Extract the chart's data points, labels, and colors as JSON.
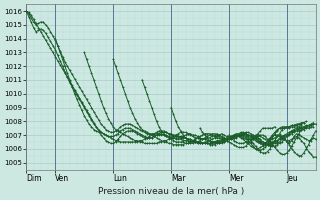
{
  "title": "",
  "xlabel": "Pression niveau de la mer( hPa )",
  "ylabel": "",
  "background_color": "#cce8e0",
  "plot_bg_color": "#cce8e0",
  "grid_major_color": "#aacccc",
  "grid_minor_color": "#bbdddd",
  "line_color": "#1a5c2a",
  "ylim": [
    1004.5,
    1016.5
  ],
  "ytick_min": 1005,
  "ytick_max": 1016,
  "ytick_step": 1,
  "day_labels": [
    "Dim",
    "Ven",
    "Lun",
    "Mar",
    "Mer",
    "Jeu"
  ],
  "day_positions_hours": [
    0,
    24,
    72,
    120,
    168,
    216
  ],
  "total_hours": 240,
  "lines": [
    {
      "start_hour": 0,
      "values": [
        1016.0,
        1015.9,
        1015.7,
        1015.4,
        1015.1,
        1014.8,
        1014.5,
        1014.2,
        1013.9,
        1013.6,
        1013.3,
        1013.0,
        1012.7,
        1012.4,
        1012.1,
        1011.8,
        1011.5,
        1011.2,
        1010.9,
        1010.6,
        1010.3,
        1010.0,
        1009.7,
        1009.4,
        1009.1,
        1008.8,
        1008.5,
        1008.2,
        1007.9,
        1007.6,
        1007.3,
        1007.0,
        1006.8,
        1006.6,
        1006.5,
        1006.4,
        1006.4,
        1006.5,
        1006.7,
        1006.9,
        1007.1,
        1007.2,
        1007.3,
        1007.3,
        1007.3,
        1007.2,
        1007.1,
        1007.0,
        1006.9,
        1006.8,
        1006.8,
        1006.8,
        1006.8,
        1006.9,
        1007.0,
        1007.1,
        1007.2,
        1007.2,
        1007.2,
        1007.1,
        1007.1,
        1007.0,
        1007.0,
        1006.9,
        1006.9,
        1006.8,
        1006.8,
        1006.7,
        1006.7,
        1006.6,
        1006.6,
        1006.5,
        1006.5,
        1006.4,
        1006.4,
        1006.4,
        1006.3,
        1006.3,
        1006.3,
        1006.4,
        1006.4,
        1006.5,
        1006.5,
        1006.6,
        1006.7,
        1006.7,
        1006.8,
        1006.9,
        1007.0,
        1007.0,
        1007.1,
        1007.1,
        1007.0,
        1007.0,
        1006.9,
        1006.8,
        1006.7,
        1006.6,
        1006.5,
        1006.4,
        1006.3,
        1006.3,
        1006.3,
        1006.4,
        1006.4,
        1006.5,
        1006.7,
        1006.8,
        1006.9,
        1007.0,
        1007.1,
        1007.2,
        1007.3,
        1007.3,
        1007.4,
        1007.4,
        1007.5,
        1007.5,
        1007.6,
        1007.6
      ]
    },
    {
      "start_hour": 0,
      "values": [
        1016.0,
        1015.8,
        1015.5,
        1015.2,
        1015.0,
        1015.1,
        1015.2,
        1015.2,
        1015.0,
        1014.8,
        1014.5,
        1014.2,
        1013.9,
        1013.5,
        1013.1,
        1012.7,
        1012.3,
        1012.0,
        1011.7,
        1011.4,
        1011.1,
        1010.8,
        1010.5,
        1010.2,
        1009.9,
        1009.6,
        1009.3,
        1009.0,
        1008.7,
        1008.4,
        1008.1,
        1007.8,
        1007.6,
        1007.4,
        1007.3,
        1007.2,
        1007.2,
        1007.3,
        1007.4,
        1007.6,
        1007.7,
        1007.8,
        1007.8,
        1007.8,
        1007.7,
        1007.6,
        1007.5,
        1007.4,
        1007.3,
        1007.2,
        1007.1,
        1007.1,
        1007.1,
        1007.1,
        1007.2,
        1007.3,
        1007.3,
        1007.3,
        1007.2,
        1007.1,
        1007.0,
        1006.9,
        1006.9,
        1006.9,
        1006.8,
        1006.8,
        1006.8,
        1006.7,
        1006.7,
        1006.6,
        1006.6,
        1006.5,
        1006.5,
        1006.4,
        1006.4,
        1006.4,
        1006.4,
        1006.4,
        1006.4,
        1006.5,
        1006.5,
        1006.6,
        1006.6,
        1006.7,
        1006.8,
        1006.8,
        1006.9,
        1007.0,
        1007.0,
        1007.1,
        1007.1,
        1007.0,
        1006.9,
        1006.8,
        1006.7,
        1006.6,
        1006.5,
        1006.4,
        1006.3,
        1006.3,
        1006.3,
        1006.3,
        1006.4,
        1006.5,
        1006.5,
        1006.7,
        1006.8,
        1006.9,
        1007.0,
        1007.1,
        1007.2,
        1007.3,
        1007.4,
        1007.4,
        1007.5,
        1007.5,
        1007.6,
        1007.6,
        1007.7,
        1007.8
      ]
    },
    {
      "start_hour": 0,
      "values": [
        1016.0,
        1015.6,
        1015.2,
        1014.8,
        1014.5,
        1014.6,
        1014.7,
        1014.6,
        1014.4,
        1014.1,
        1013.8,
        1013.5,
        1013.2,
        1012.8,
        1012.4,
        1012.0,
        1011.6,
        1011.2,
        1010.8,
        1010.5,
        1010.2,
        1009.9,
        1009.6,
        1009.3,
        1009.0,
        1008.7,
        1008.4,
        1008.1,
        1007.8,
        1007.6,
        1007.4,
        1007.2,
        1007.1,
        1007.0,
        1006.9,
        1006.9,
        1006.9,
        1007.0,
        1007.1,
        1007.3,
        1007.4,
        1007.5,
        1007.5,
        1007.5,
        1007.4,
        1007.3,
        1007.2,
        1007.1,
        1007.0,
        1006.9,
        1006.8,
        1006.8,
        1006.8,
        1006.9,
        1007.0,
        1007.0,
        1007.1,
        1007.0,
        1007.0,
        1006.9,
        1006.8,
        1006.8,
        1006.7,
        1006.7,
        1006.7,
        1006.6,
        1006.6,
        1006.6,
        1006.5,
        1006.5,
        1006.5,
        1006.4,
        1006.4,
        1006.4,
        1006.4,
        1006.4,
        1006.4,
        1006.5,
        1006.5,
        1006.6,
        1006.6,
        1006.7,
        1006.7,
        1006.8,
        1006.9,
        1006.9,
        1007.0,
        1007.1,
        1007.1,
        1007.2,
        1007.2,
        1007.1,
        1007.0,
        1006.9,
        1006.8,
        1006.7,
        1006.6,
        1006.5,
        1006.4,
        1006.4,
        1006.4,
        1006.4,
        1006.5,
        1006.6,
        1006.6,
        1006.8,
        1006.9,
        1007.0,
        1007.1,
        1007.2,
        1007.3,
        1007.4,
        1007.5,
        1007.5,
        1007.6,
        1007.6,
        1007.7,
        1007.7,
        1007.8,
        1007.9
      ]
    },
    {
      "start_hour": 24,
      "values": [
        1014.0,
        1013.5,
        1013.0,
        1012.5,
        1012.0,
        1011.5,
        1011.0,
        1010.5,
        1010.0,
        1009.6,
        1009.2,
        1008.8,
        1008.4,
        1008.1,
        1007.8,
        1007.6,
        1007.4,
        1007.3,
        1007.2,
        1007.2,
        1007.1,
        1007.0,
        1006.9,
        1006.8,
        1006.7,
        1006.6,
        1006.6,
        1006.5,
        1006.5,
        1006.5,
        1006.5,
        1006.5,
        1006.5,
        1006.5,
        1006.5,
        1006.6,
        1006.6,
        1006.7,
        1006.8,
        1006.9,
        1007.0,
        1007.1,
        1007.1,
        1007.1,
        1007.0,
        1007.0,
        1006.9,
        1006.9,
        1006.8,
        1006.8,
        1006.8,
        1006.8,
        1006.8,
        1006.9,
        1007.0,
        1007.1,
        1007.1,
        1007.0,
        1007.0,
        1006.9,
        1006.8,
        1006.7,
        1006.7,
        1006.6,
        1006.6,
        1006.5,
        1006.5,
        1006.5,
        1006.5,
        1006.6,
        1006.6,
        1006.7,
        1006.7,
        1006.8,
        1006.9,
        1006.9,
        1007.0,
        1007.1,
        1007.1,
        1007.2,
        1007.2,
        1007.1,
        1007.0,
        1006.9,
        1006.8,
        1006.7,
        1006.5,
        1006.4,
        1006.3,
        1006.2,
        1006.2,
        1006.2,
        1006.3,
        1006.4,
        1006.5,
        1006.7,
        1006.9,
        1007.1,
        1007.3,
        1007.4
      ]
    },
    {
      "start_hour": 48,
      "values": [
        1013.0,
        1012.5,
        1012.0,
        1011.5,
        1011.0,
        1010.5,
        1010.0,
        1009.5,
        1009.0,
        1008.6,
        1008.2,
        1007.9,
        1007.6,
        1007.4,
        1007.3,
        1007.2,
        1007.1,
        1007.0,
        1006.9,
        1006.8,
        1006.7,
        1006.6,
        1006.6,
        1006.5,
        1006.5,
        1006.4,
        1006.4,
        1006.4,
        1006.4,
        1006.4,
        1006.4,
        1006.5,
        1006.5,
        1006.6,
        1006.6,
        1006.7,
        1006.8,
        1006.9,
        1007.0,
        1007.1,
        1007.2,
        1007.2,
        1007.2,
        1007.1,
        1007.0,
        1006.9,
        1006.8,
        1006.8,
        1006.7,
        1006.7,
        1006.7,
        1006.8,
        1006.8,
        1006.9,
        1007.0,
        1007.1,
        1007.0,
        1006.9,
        1006.8,
        1006.7,
        1006.5,
        1006.4,
        1006.3,
        1006.2,
        1006.1,
        1006.1,
        1006.1,
        1006.2,
        1006.4,
        1006.5,
        1006.7,
        1006.9,
        1007.1,
        1007.3,
        1007.5,
        1007.5,
        1007.5,
        1007.5,
        1007.5,
        1007.6
      ]
    },
    {
      "start_hour": 72,
      "values": [
        1012.5,
        1012.0,
        1011.5,
        1011.0,
        1010.5,
        1010.0,
        1009.5,
        1009.0,
        1008.6,
        1008.2,
        1007.9,
        1007.6,
        1007.4,
        1007.3,
        1007.2,
        1007.1,
        1007.0,
        1006.9,
        1006.8,
        1006.7,
        1006.6,
        1006.5,
        1006.5,
        1006.4,
        1006.4,
        1006.3,
        1006.3,
        1006.3,
        1006.3,
        1006.3,
        1006.4,
        1006.4,
        1006.5,
        1006.6,
        1006.7,
        1006.8,
        1006.9,
        1007.0,
        1007.1,
        1007.1,
        1007.1,
        1007.0,
        1006.9,
        1006.8,
        1006.8,
        1006.7,
        1006.7,
        1006.7,
        1006.8,
        1006.9,
        1007.0,
        1007.0,
        1006.9,
        1006.8,
        1006.7,
        1006.5,
        1006.4,
        1006.2,
        1006.1,
        1006.0,
        1006.0,
        1006.1,
        1006.2,
        1006.4,
        1006.6,
        1006.8,
        1007.0,
        1007.2,
        1007.4,
        1007.5,
        1007.5,
        1007.5,
        1007.5,
        1007.5,
        1007.6,
        1007.6,
        1007.6,
        1007.6,
        1007.7
      ]
    },
    {
      "start_hour": 96,
      "values": [
        1011.0,
        1010.5,
        1010.0,
        1009.5,
        1009.0,
        1008.5,
        1008.0,
        1007.6,
        1007.3,
        1007.1,
        1006.9,
        1006.8,
        1006.7,
        1006.6,
        1006.5,
        1006.5,
        1006.5,
        1006.5,
        1006.4,
        1006.4,
        1006.4,
        1006.4,
        1006.5,
        1006.5,
        1006.6,
        1006.7,
        1006.8,
        1006.9,
        1007.0,
        1007.1,
        1007.1,
        1007.0,
        1006.9,
        1006.8,
        1006.8,
        1006.7,
        1006.7,
        1006.7,
        1006.8,
        1006.9,
        1007.0,
        1007.0,
        1006.9,
        1006.8,
        1006.6,
        1006.4,
        1006.2,
        1006.0,
        1005.9,
        1005.9,
        1006.0,
        1006.1,
        1006.3,
        1006.6,
        1006.8,
        1007.1,
        1007.3,
        1007.5,
        1007.6,
        1007.6,
        1007.6,
        1007.6,
        1007.7,
        1007.7,
        1007.7,
        1007.8,
        1007.8,
        1007.9
      ]
    },
    {
      "start_hour": 120,
      "values": [
        1009.0,
        1008.5,
        1008.0,
        1007.6,
        1007.3,
        1007.0,
        1006.8,
        1006.7,
        1006.6,
        1006.5,
        1006.5,
        1006.4,
        1006.4,
        1006.4,
        1006.5,
        1006.5,
        1006.6,
        1006.7,
        1006.8,
        1006.9,
        1007.0,
        1007.1,
        1007.0,
        1006.9,
        1006.9,
        1006.8,
        1006.8,
        1006.8,
        1006.9,
        1007.0,
        1007.0,
        1006.9,
        1006.8,
        1006.6,
        1006.4,
        1006.2,
        1006.0,
        1005.8,
        1005.7,
        1005.7,
        1005.8,
        1006.0,
        1006.3,
        1006.6,
        1006.9,
        1007.1,
        1007.4,
        1007.5,
        1007.6,
        1007.6,
        1007.7,
        1007.7,
        1007.8,
        1007.8,
        1007.9,
        1007.9,
        1008.0
      ]
    },
    {
      "start_hour": 144,
      "values": [
        1007.5,
        1007.2,
        1007.0,
        1006.8,
        1006.6,
        1006.5,
        1006.5,
        1006.4,
        1006.4,
        1006.4,
        1006.5,
        1006.6,
        1006.7,
        1006.8,
        1006.9,
        1007.0,
        1007.0,
        1006.9,
        1006.8,
        1006.7,
        1006.7,
        1006.7,
        1006.7,
        1006.8,
        1006.9,
        1007.0,
        1007.0,
        1006.9,
        1006.7,
        1006.5,
        1006.3,
        1006.1,
        1005.9,
        1005.7,
        1005.6,
        1005.6,
        1005.7,
        1005.9,
        1006.2,
        1006.5,
        1006.8,
        1007.1,
        1007.4,
        1007.6,
        1007.6,
        1007.7,
        1007.7,
        1007.8,
        1007.8,
        1007.9,
        1007.9,
        1008.0
      ]
    },
    {
      "start_hour": 168,
      "values": [
        1007.0,
        1006.8,
        1006.6,
        1006.5,
        1006.4,
        1006.4,
        1006.4,
        1006.5,
        1006.6,
        1006.7,
        1006.9,
        1007.0,
        1007.0,
        1006.9,
        1006.8,
        1006.7,
        1006.6,
        1006.6,
        1006.7,
        1006.8,
        1006.9,
        1007.0,
        1006.9,
        1006.7,
        1006.5,
        1006.3,
        1006.0,
        1005.8,
        1005.6,
        1005.5,
        1005.5,
        1005.7,
        1006.0,
        1006.3,
        1006.7,
        1007.0,
        1007.3,
        1007.5,
        1007.6,
        1007.6,
        1007.7,
        1007.7,
        1007.8,
        1007.9,
        1008.0
      ]
    },
    {
      "start_hour": 192,
      "values": [
        1006.5,
        1006.4,
        1006.3,
        1006.4,
        1006.5,
        1006.7,
        1006.9,
        1007.0,
        1007.0,
        1006.9,
        1006.8,
        1006.7,
        1006.6,
        1006.6,
        1006.7,
        1006.8,
        1006.9,
        1006.8,
        1006.6,
        1006.4,
        1006.1,
        1005.8,
        1005.6,
        1005.4,
        1005.4,
        1005.6,
        1006.0,
        1006.4,
        1006.8,
        1007.2,
        1007.5,
        1007.6,
        1007.7,
        1007.8,
        1007.9,
        1008.0
      ]
    },
    {
      "start_hour": 216,
      "values": [
        1006.5,
        1006.4,
        1006.6,
        1006.9,
        1007.1,
        1007.0,
        1006.9,
        1006.8,
        1006.7,
        1006.6,
        1006.6,
        1006.8,
        1006.7,
        1006.4,
        1006.0,
        1005.7,
        1005.4,
        1005.3,
        1005.6,
        1006.1,
        1006.6,
        1007.1,
        1007.5,
        1007.7,
        1007.8
      ]
    }
  ]
}
